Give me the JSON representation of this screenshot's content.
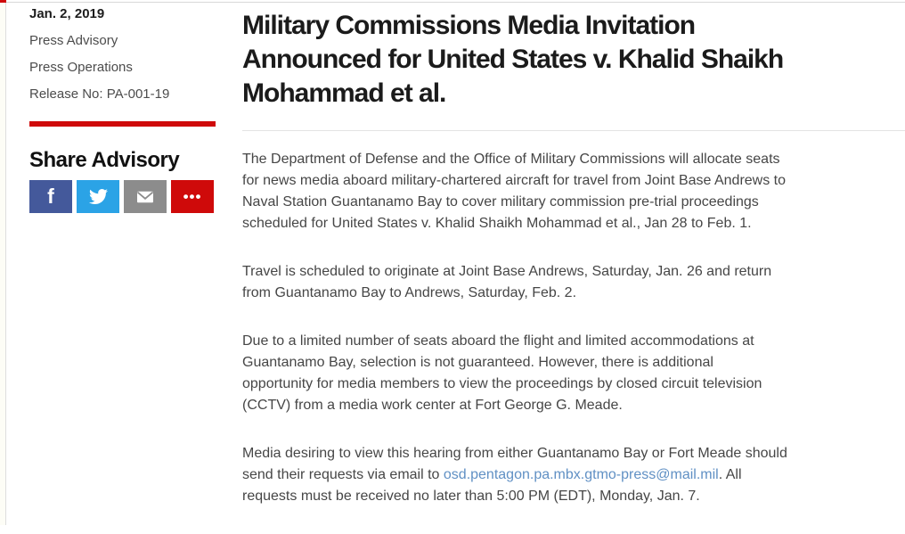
{
  "colors": {
    "accent_red": "#cf0a0a",
    "facebook_blue": "#44599b",
    "twitter_blue": "#2ba3e6",
    "email_gray": "#8c8c8c",
    "link_blue": "#6090c4"
  },
  "sidebar": {
    "date": "Jan. 2, 2019",
    "meta": [
      "Press Advisory",
      "Press Operations"
    ],
    "release": "Release No: PA-001-19",
    "share_heading": "Share Advisory",
    "share_buttons": [
      {
        "name": "facebook",
        "icon": "facebook-f-icon",
        "glyph": "f",
        "color": "#44599b"
      },
      {
        "name": "twitter",
        "icon": "twitter-bird-icon",
        "color": "#2ba3e6"
      },
      {
        "name": "email",
        "icon": "envelope-icon",
        "color": "#8c8c8c"
      },
      {
        "name": "more",
        "icon": "ellipsis-icon",
        "glyph": "•••",
        "color": "#cf0a0a"
      }
    ]
  },
  "article": {
    "title": "Military Commissions Media Invitation Announced for United States v. Khalid Shaikh Mohammad et al.",
    "title_lines": [
      "Military Commissions Media Invitation",
      "Announced for United States v. Khalid Shaikh",
      "Mohammad et al."
    ],
    "paragraphs": [
      {
        "lines": [
          "The Department of Defense and the Office of Military Commissions will allocate seats",
          "for news media aboard military-chartered aircraft for travel from Joint Base Andrews to",
          "Naval Station Guantanamo Bay to cover military commission pre-trial proceedings",
          "scheduled for United States v. Khalid Shaikh Mohammad et al., Jan 28 to Feb. 1."
        ]
      },
      {
        "lines": [
          "Travel is scheduled to originate at Joint Base Andrews, Saturday, Jan. 26 and return",
          "from Guantanamo Bay to Andrews, Saturday, Feb. 2."
        ]
      },
      {
        "lines": [
          "Due to a limited number of seats aboard the flight and limited accommodations at",
          "Guantanamo Bay, selection is not guaranteed. However, there is additional",
          "opportunity for media members to view the proceedings by closed circuit television",
          "(CCTV) from a media work center at Fort George G. Meade."
        ]
      }
    ],
    "closing_paragraph": {
      "line1": "Media desiring to view this hearing from either Guantanamo Bay or Fort Meade should",
      "line2_before": "send their requests via email to ",
      "email_link": "osd.pentagon.pa.mbx.gtmo-press@mail.mil",
      "line2_after": ". All",
      "line3": "requests must be received no later than 5:00 PM (EDT), Monday, Jan. 7."
    }
  }
}
